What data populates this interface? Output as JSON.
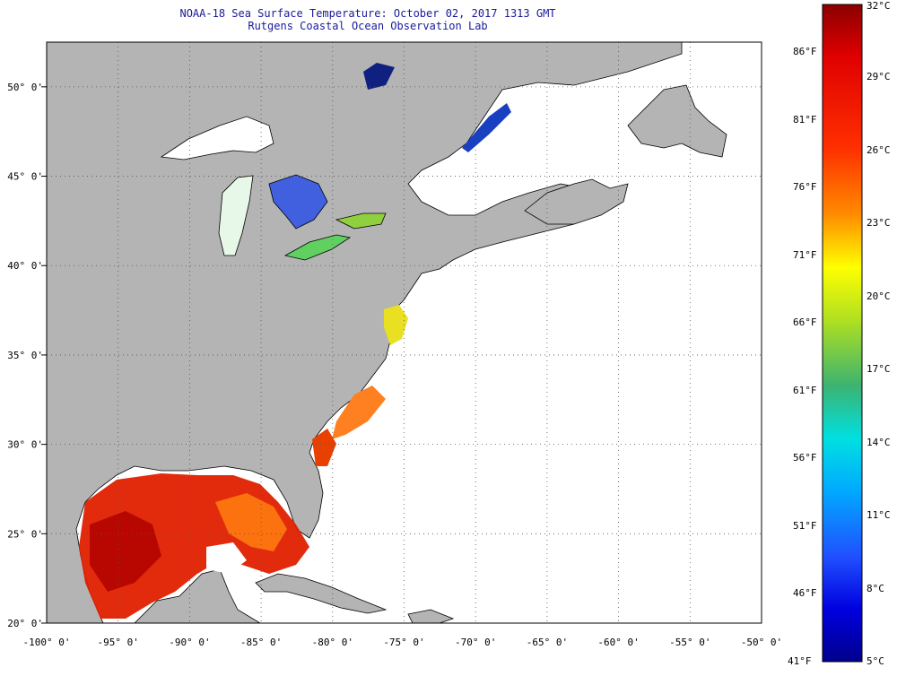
{
  "title": {
    "line1": "NOAA-18 Sea Surface Temperature:  October 02, 2017 1313 GMT",
    "line2": "Rutgens Coastal Ocean Observation Lab"
  },
  "map": {
    "lon_range": [
      -100,
      -50
    ],
    "lat_range": [
      20,
      52.5
    ],
    "lon_ticks": [
      {
        "value": -100,
        "label": "-100° 0'"
      },
      {
        "value": -95,
        "label": "-95° 0'"
      },
      {
        "value": -90,
        "label": "-90° 0'"
      },
      {
        "value": -85,
        "label": "-85° 0'"
      },
      {
        "value": -80,
        "label": "-80° 0'"
      },
      {
        "value": -75,
        "label": "-75° 0'"
      },
      {
        "value": -70,
        "label": "-70° 0'"
      },
      {
        "value": -65,
        "label": "-65° 0'"
      },
      {
        "value": -60,
        "label": "-60° 0'"
      },
      {
        "value": -55,
        "label": "-55° 0'"
      },
      {
        "value": -50,
        "label": "-50° 0'"
      }
    ],
    "lat_ticks": [
      {
        "value": 20,
        "label": "20° 0'"
      },
      {
        "value": 25,
        "label": "25° 0'"
      },
      {
        "value": 30,
        "label": "30° 0'"
      },
      {
        "value": 35,
        "label": "35° 0'"
      },
      {
        "value": 40,
        "label": "40° 0'"
      },
      {
        "value": 45,
        "label": "45° 0'"
      },
      {
        "value": 50,
        "label": "50° 0'"
      }
    ],
    "land_color": "#b4b4b4",
    "ocean_color": "#ffffff",
    "grid": "dotted"
  },
  "colorbar": {
    "celsius_labels": [
      "32°C",
      "29°C",
      "26°C",
      "23°C",
      "20°C",
      "17°C",
      "14°C",
      "11°C",
      "8°C",
      "5°C"
    ],
    "fahrenheit_labels": [
      "86°F",
      "81°F",
      "76°F",
      "71°F",
      "66°F",
      "61°F",
      "56°F",
      "51°F",
      "46°F",
      "41°F"
    ],
    "colors": [
      "#8b0000",
      "#e00000",
      "#ff4500",
      "#ff8c00",
      "#ffd700",
      "#ffff00",
      "#9acd32",
      "#3cb371",
      "#00ced1",
      "#00bfff",
      "#1e90ff",
      "#0000ff",
      "#00008b"
    ]
  }
}
